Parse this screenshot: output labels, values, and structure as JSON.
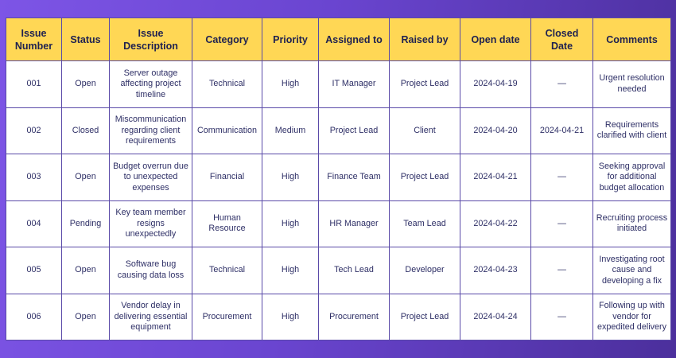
{
  "table": {
    "headers": [
      "Issue Number",
      "Status",
      "Issue Description",
      "Category",
      "Priority",
      "Assigned to",
      "Raised by",
      "Open date",
      "Closed Date",
      "Comments"
    ],
    "rows": [
      [
        "001",
        "Open",
        "Server outage affecting project timeline",
        "Technical",
        "High",
        "IT Manager",
        "Project Lead",
        "2024-04-19",
        "—",
        "Urgent resolution needed"
      ],
      [
        "002",
        "Closed",
        "Miscommunication regarding client requirements",
        "Communication",
        "Medium",
        "Project Lead",
        "Client",
        "2024-04-20",
        "2024-04-21",
        "Requirements clarified with client"
      ],
      [
        "003",
        "Open",
        "Budget overrun due to unexpected expenses",
        "Financial",
        "High",
        "Finance Team",
        "Project Lead",
        "2024-04-21",
        "—",
        "Seeking approval for additional budget allocation"
      ],
      [
        "004",
        "Pending",
        "Key team member resigns unexpectedly",
        "Human Resource",
        "High",
        "HR Manager",
        "Team Lead",
        "2024-04-22",
        "—",
        "Recruiting process initiated"
      ],
      [
        "005",
        "Open",
        "Software bug causing data loss",
        "Technical",
        "High",
        "Tech Lead",
        "Developer",
        "2024-04-23",
        "—",
        "Investigating root cause and developing a fix"
      ],
      [
        "006",
        "Open",
        "Vendor delay in delivering essential equipment",
        "Procurement",
        "High",
        "Procurement",
        "Project Lead",
        "2024-04-24",
        "—",
        "Following up with vendor for expedited delivery"
      ]
    ]
  }
}
